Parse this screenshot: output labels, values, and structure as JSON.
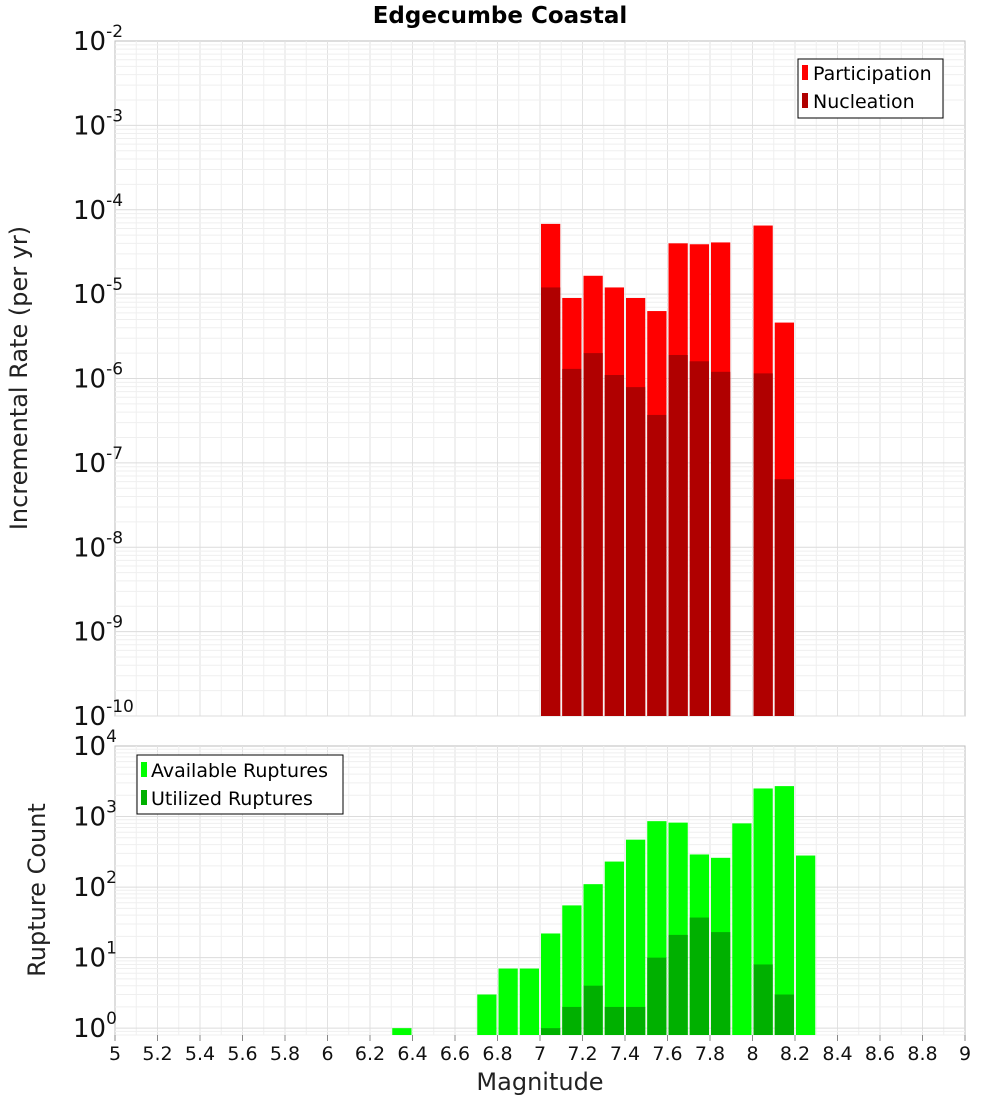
{
  "chart_data": [
    {
      "type": "bar",
      "title": "Edgecumbe Coastal",
      "xlabel": "Magnitude",
      "ylabel": "Incremental Rate (per yr)",
      "yscale": "log",
      "xlim": [
        5,
        9
      ],
      "ylim": [
        1e-10,
        0.01
      ],
      "ytick_exponents": [
        -10,
        -9,
        -8,
        -7,
        -6,
        -5,
        -4,
        -3,
        -2
      ],
      "bin_width": 0.1,
      "legend_position": "top-right",
      "series": [
        {
          "name": "Participation",
          "color": "#ff0000",
          "x": [
            7.05,
            7.15,
            7.25,
            7.35,
            7.45,
            7.55,
            7.65,
            7.75,
            7.85,
            8.05,
            8.15
          ],
          "values": [
            6.8e-05,
            9e-06,
            1.65e-05,
            1.2e-05,
            9e-06,
            6.3e-06,
            4e-05,
            3.9e-05,
            4.1e-05,
            6.5e-05,
            4.6e-06
          ]
        },
        {
          "name": "Nucleation",
          "color": "#b00000",
          "x": [
            7.05,
            7.15,
            7.25,
            7.35,
            7.45,
            7.55,
            7.65,
            7.75,
            7.85,
            8.05,
            8.15
          ],
          "values": [
            1.2e-05,
            1.3e-06,
            2e-06,
            1.1e-06,
            7.9e-07,
            3.7e-07,
            1.9e-06,
            1.6e-06,
            1.2e-06,
            1.15e-06,
            6.4e-08
          ]
        }
      ]
    },
    {
      "type": "bar",
      "title": "",
      "xlabel": "Magnitude",
      "ylabel": "Rupture Count",
      "yscale": "log",
      "xlim": [
        5,
        9
      ],
      "ylim": [
        0.8,
        10000
      ],
      "ytick_exponents": [
        0,
        1,
        2,
        3,
        4
      ],
      "bin_width": 0.1,
      "legend_position": "top-left",
      "series": [
        {
          "name": "Available Ruptures",
          "color": "#00ff00",
          "x": [
            6.35,
            6.75,
            6.85,
            6.95,
            7.05,
            7.15,
            7.25,
            7.35,
            7.45,
            7.55,
            7.65,
            7.75,
            7.85,
            7.95,
            8.05,
            8.15,
            8.25
          ],
          "values": [
            1,
            3,
            7,
            7,
            22,
            55,
            110,
            230,
            470,
            860,
            820,
            290,
            260,
            800,
            2500,
            2700,
            280
          ]
        },
        {
          "name": "Utilized Ruptures",
          "color": "#00b000",
          "x": [
            7.05,
            7.15,
            7.25,
            7.35,
            7.45,
            7.55,
            7.65,
            7.75,
            7.85,
            8.05,
            8.15
          ],
          "values": [
            1,
            2,
            4,
            2,
            2,
            10,
            21,
            37,
            23,
            8,
            3
          ]
        }
      ]
    }
  ],
  "x_ticks": [
    "5",
    "5.2",
    "5.4",
    "5.6",
    "5.8",
    "6",
    "6.2",
    "6.4",
    "6.6",
    "6.8",
    "7",
    "7.2",
    "7.4",
    "7.6",
    "7.8",
    "8",
    "8.2",
    "8.4",
    "8.6",
    "8.8",
    "9"
  ]
}
